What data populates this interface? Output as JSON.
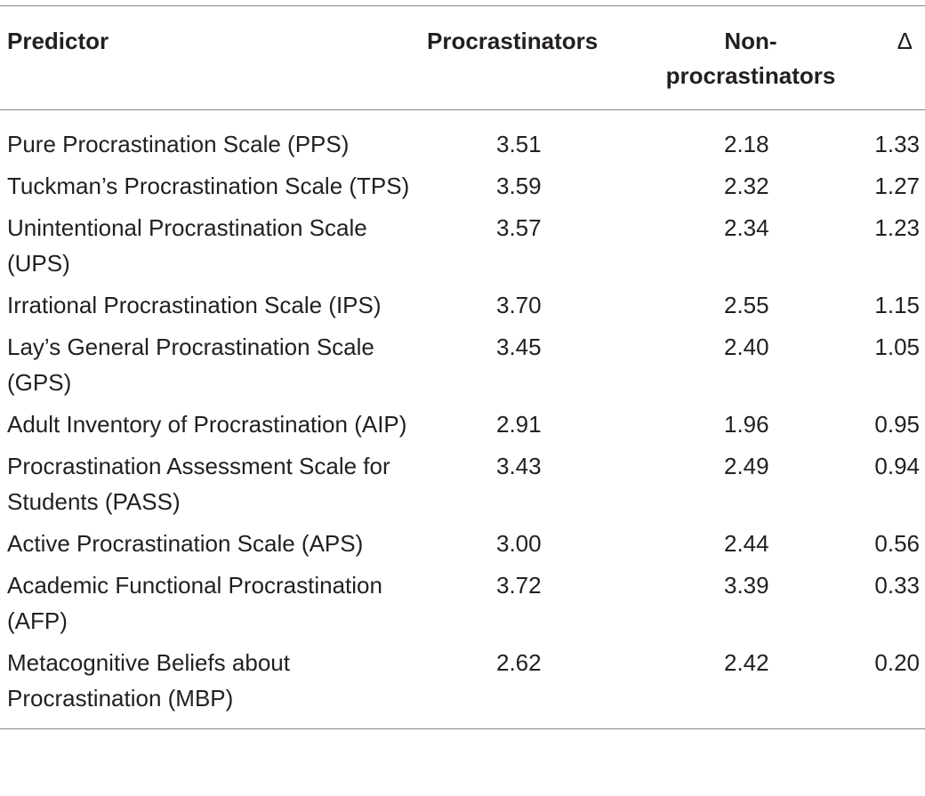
{
  "table": {
    "headers": {
      "predictor": "Predictor",
      "procrastinators": "Procrastinators",
      "non_procrastinators": "Non-procrastinators",
      "delta": "Δ"
    },
    "rows": [
      {
        "predictor": "Pure Procrastination Scale (PPS)",
        "procrastinators": "3.51",
        "non_procrastinators": "2.18",
        "delta": "1.33"
      },
      {
        "predictor": "Tuckman’s Procrastination Scale (TPS)",
        "procrastinators": "3.59",
        "non_procrastinators": "2.32",
        "delta": "1.27"
      },
      {
        "predictor": "Unintentional Procrastination Scale (UPS)",
        "procrastinators": "3.57",
        "non_procrastinators": "2.34",
        "delta": "1.23"
      },
      {
        "predictor": "Irrational Procrastination Scale (IPS)",
        "procrastinators": "3.70",
        "non_procrastinators": "2.55",
        "delta": "1.15"
      },
      {
        "predictor": "Lay’s General Procrastination Scale (GPS)",
        "procrastinators": "3.45",
        "non_procrastinators": "2.40",
        "delta": "1.05"
      },
      {
        "predictor": "Adult Inventory of Procrastination (AIP)",
        "procrastinators": "2.91",
        "non_procrastinators": "1.96",
        "delta": "0.95"
      },
      {
        "predictor": "Procrastination Assessment Scale for Students (PASS)",
        "procrastinators": "3.43",
        "non_procrastinators": "2.49",
        "delta": "0.94"
      },
      {
        "predictor": "Active Procrastination Scale (APS)",
        "procrastinators": "3.00",
        "non_procrastinators": "2.44",
        "delta": "0.56"
      },
      {
        "predictor": "Academic Functional Procrastination (AFP)",
        "procrastinators": "3.72",
        "non_procrastinators": "3.39",
        "delta": "0.33"
      },
      {
        "predictor": "Metacognitive Beliefs about Procrastination (MBP)",
        "procrastinators": "2.62",
        "non_procrastinators": "2.42",
        "delta": "0.20"
      }
    ]
  }
}
